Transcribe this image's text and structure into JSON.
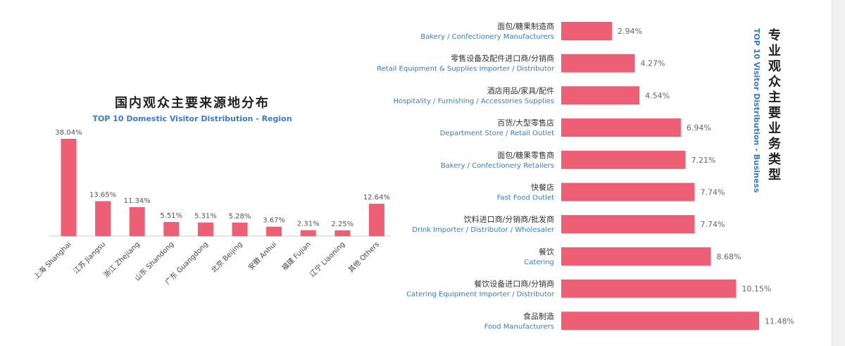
{
  "colors": {
    "bar": "#ec5f74",
    "title_accent": "#3a7cc5",
    "axis": "#cccccc"
  },
  "region_chart": {
    "title_zh": "国内观众主要来源地分布",
    "title_en": "TOP 10 Domestic Visitor Distribution - Region"
  },
  "business_chart": {
    "title_zh": "专业观众主要业务类型",
    "title_en": "TOP 10 Visitor Distribution - Business"
  },
  "chart_data": [
    {
      "type": "bar",
      "orientation": "vertical",
      "title": "国内观众主要来源地分布",
      "subtitle": "TOP 10 Domestic Visitor Distribution - Region",
      "categories": [
        "上海 Shanghai",
        "江苏 Jiangsu",
        "浙江 Zhejiang",
        "山东 Shandong",
        "广东 Guangdong",
        "北京 Beijing",
        "安徽 Anhui",
        "福建 Fujian",
        "辽宁 Liaoning",
        "其他 Others"
      ],
      "values": [
        38.04,
        13.65,
        11.34,
        5.51,
        5.31,
        5.28,
        3.67,
        2.31,
        2.25,
        12.64
      ],
      "value_labels": [
        "38.04%",
        "13.65%",
        "11.34%",
        "5.51%",
        "5.31%",
        "5.28%",
        "3.67%",
        "2.31%",
        "2.25%",
        "12.64%"
      ],
      "ylim": [
        0,
        38.04
      ],
      "grid": false
    },
    {
      "type": "bar",
      "orientation": "horizontal",
      "title": "专业观众主要业务类型",
      "subtitle": "TOP 10 Visitor Distribution - Business",
      "categories": [
        {
          "zh": "面包/糖果制造商",
          "en": "Bakery / Confectionery Manufacturers"
        },
        {
          "zh": "零售设备及配件进口商/分销商",
          "en": "Retail Equipment & Supplies Importer / Distributor"
        },
        {
          "zh": "酒店用品/家具/配件",
          "en": "Hospitality / Furnishing / Accessories Supplies"
        },
        {
          "zh": "百货/大型零售店",
          "en": "Department Store / Retail Outlet"
        },
        {
          "zh": "面包/糖果零售商",
          "en": "Bakery / Confectionery Retailers"
        },
        {
          "zh": "快餐店",
          "en": "Fast Food Outlet"
        },
        {
          "zh": "饮料进口商/分销商/批发商",
          "en": "Drink Importer / Distributor / Wholesaler"
        },
        {
          "zh": "餐饮",
          "en": "Catering"
        },
        {
          "zh": "餐饮设备进口商/分销商",
          "en": "Catering Equipment Importer / Distributor"
        },
        {
          "zh": "食品制造",
          "en": "Food Manufacturers"
        }
      ],
      "values": [
        2.94,
        4.27,
        4.54,
        6.94,
        7.21,
        7.74,
        7.74,
        8.68,
        10.15,
        11.48
      ],
      "value_labels": [
        "2.94%",
        "4.27%",
        "4.54%",
        "6.94%",
        "7.21%",
        "7.74%",
        "7.74%",
        "8.68%",
        "10.15%",
        "11.48%"
      ],
      "xlim": [
        0,
        11.48
      ],
      "grid": false
    }
  ]
}
